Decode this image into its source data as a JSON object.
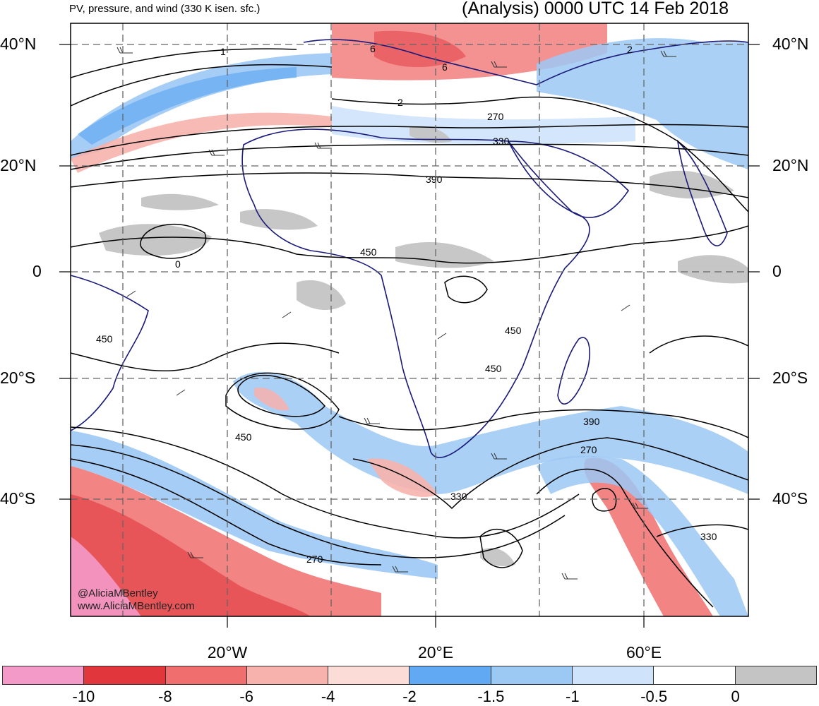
{
  "header": {
    "left_title": "PV, pressure, and wind (330 K isen. sfc.)",
    "right_title": "(Analysis) 0000 UTC 14 Feb 2018"
  },
  "axes": {
    "lat_labels": [
      "40°N",
      "20°N",
      "0",
      "20°S",
      "40°S"
    ],
    "lon_labels": [
      "20°W",
      "20°E",
      "60°E"
    ]
  },
  "contour_labels": [
    "1",
    "6",
    "6",
    "2",
    "2",
    "270",
    "330",
    "390",
    "450",
    "450",
    "0",
    "450",
    "450",
    "450",
    "390",
    "270",
    "330",
    "270",
    "330"
  ],
  "credits": {
    "handle": "@AliciaMBentley",
    "site": "www.AliciaMBentley.com"
  },
  "colorbar": {
    "colors": [
      "#f49ac8",
      "#e0363c",
      "#f06e6e",
      "#f7b2ad",
      "#fbdcd6",
      "#62a9f4",
      "#9cc8f4",
      "#cfe3fb",
      "#ffffff",
      "#c4c4c4"
    ],
    "labels": [
      "-10",
      "-8",
      "-6",
      "-4",
      "-2",
      "-1.5",
      "-1",
      "-0.5",
      "0"
    ]
  },
  "colors": {
    "coastline": "#1a1a7a",
    "contour": "#000000",
    "grid": "#666666",
    "neutral_gray": "#c4c4c4"
  }
}
